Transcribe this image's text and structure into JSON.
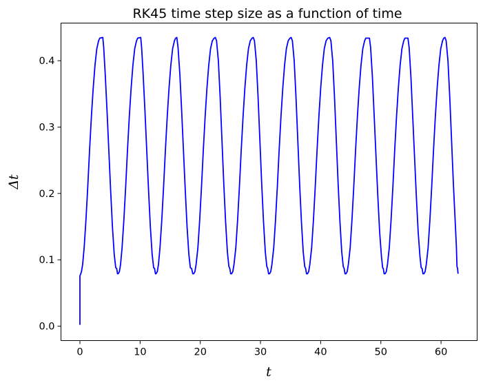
{
  "chart_data": {
    "type": "line",
    "title": "RK45 time step size as a function of time",
    "xlabel": "t",
    "ylabel": "Δt",
    "xlim": [
      -3.15,
      66.0
    ],
    "ylim": [
      -0.0217,
      0.4567
    ],
    "xticks": [
      0,
      10,
      20,
      30,
      40,
      50,
      60
    ],
    "xtick_labels": [
      "0",
      "10",
      "20",
      "30",
      "40",
      "50",
      "60"
    ],
    "yticks": [
      0.0,
      0.1,
      0.2,
      0.3,
      0.4
    ],
    "ytick_labels": [
      "0.0",
      "0.1",
      "0.2",
      "0.3",
      "0.4"
    ],
    "grid": false,
    "legend": "none",
    "colors": {
      "line": "#0000ff",
      "axes": "#000000",
      "background": "#ffffff"
    },
    "series": [
      {
        "color": "#0000ff",
        "period": 6.2832,
        "t_end": 62.83,
        "points": [
          [
            0.0,
            0.002
          ],
          [
            0.0,
            0.076
          ],
          [
            0.1,
            0.078
          ],
          [
            0.25,
            0.082
          ],
          [
            0.45,
            0.093
          ],
          [
            0.7,
            0.118
          ],
          [
            1.0,
            0.16
          ],
          [
            1.3,
            0.21
          ],
          [
            1.6,
            0.265
          ],
          [
            1.9,
            0.315
          ],
          [
            2.2,
            0.358
          ],
          [
            2.5,
            0.393
          ],
          [
            2.8,
            0.418
          ],
          [
            3.1,
            0.43
          ],
          [
            3.3,
            0.434
          ],
          [
            3.8,
            0.435
          ],
          [
            3.95,
            0.42
          ],
          [
            4.2,
            0.38
          ],
          [
            4.5,
            0.325
          ],
          [
            4.8,
            0.265
          ],
          [
            5.1,
            0.205
          ],
          [
            5.4,
            0.15
          ],
          [
            5.7,
            0.108
          ],
          [
            5.95,
            0.088
          ],
          [
            6.1,
            0.087
          ],
          [
            6.25,
            0.079
          ],
          [
            6.35,
            0.079
          ],
          [
            6.55,
            0.082
          ],
          [
            6.75,
            0.093
          ],
          [
            7.0,
            0.118
          ],
          [
            7.3,
            0.16
          ],
          [
            7.6,
            0.21
          ],
          [
            7.9,
            0.265
          ],
          [
            8.2,
            0.315
          ],
          [
            8.5,
            0.358
          ],
          [
            8.8,
            0.393
          ],
          [
            9.1,
            0.418
          ],
          [
            9.4,
            0.43
          ],
          [
            9.6,
            0.434
          ],
          [
            10.1,
            0.435
          ],
          [
            10.25,
            0.42
          ],
          [
            10.5,
            0.38
          ],
          [
            10.8,
            0.325
          ],
          [
            11.1,
            0.265
          ],
          [
            11.4,
            0.205
          ],
          [
            11.7,
            0.15
          ],
          [
            12.0,
            0.108
          ],
          [
            12.25,
            0.088
          ],
          [
            12.4,
            0.087
          ],
          [
            12.55,
            0.079
          ],
          [
            12.65,
            0.079
          ],
          [
            12.85,
            0.082
          ],
          [
            13.05,
            0.093
          ],
          [
            13.3,
            0.118
          ],
          [
            13.6,
            0.16
          ],
          [
            13.9,
            0.21
          ],
          [
            14.2,
            0.265
          ],
          [
            14.5,
            0.315
          ],
          [
            14.8,
            0.358
          ],
          [
            15.1,
            0.393
          ],
          [
            15.4,
            0.418
          ],
          [
            15.7,
            0.43
          ],
          [
            15.9,
            0.434
          ],
          [
            16.1,
            0.435
          ],
          [
            16.3,
            0.42
          ],
          [
            16.6,
            0.38
          ],
          [
            16.9,
            0.325
          ],
          [
            17.2,
            0.265
          ],
          [
            17.5,
            0.205
          ],
          [
            17.8,
            0.15
          ],
          [
            18.1,
            0.108
          ],
          [
            18.35,
            0.088
          ],
          [
            18.55,
            0.087
          ],
          [
            18.75,
            0.079
          ],
          [
            18.9,
            0.079
          ],
          [
            19.1,
            0.082
          ],
          [
            19.3,
            0.093
          ],
          [
            19.6,
            0.118
          ],
          [
            19.9,
            0.16
          ],
          [
            20.2,
            0.21
          ],
          [
            20.5,
            0.265
          ],
          [
            20.8,
            0.315
          ],
          [
            21.1,
            0.358
          ],
          [
            21.4,
            0.393
          ],
          [
            21.7,
            0.418
          ],
          [
            22.0,
            0.43
          ],
          [
            22.3,
            0.434
          ],
          [
            22.5,
            0.435
          ],
          [
            22.7,
            0.43
          ],
          [
            23.0,
            0.4
          ],
          [
            23.3,
            0.345
          ],
          [
            23.6,
            0.28
          ],
          [
            23.9,
            0.215
          ],
          [
            24.2,
            0.158
          ],
          [
            24.5,
            0.112
          ],
          [
            24.75,
            0.09
          ],
          [
            24.9,
            0.087
          ],
          [
            25.05,
            0.079
          ],
          [
            25.2,
            0.079
          ],
          [
            25.4,
            0.082
          ],
          [
            25.6,
            0.093
          ],
          [
            25.9,
            0.118
          ],
          [
            26.2,
            0.16
          ],
          [
            26.5,
            0.21
          ],
          [
            26.8,
            0.265
          ],
          [
            27.1,
            0.315
          ],
          [
            27.4,
            0.358
          ],
          [
            27.7,
            0.393
          ],
          [
            28.0,
            0.418
          ],
          [
            28.3,
            0.43
          ],
          [
            28.6,
            0.434
          ],
          [
            28.8,
            0.435
          ],
          [
            29.0,
            0.43
          ],
          [
            29.3,
            0.4
          ],
          [
            29.6,
            0.345
          ],
          [
            29.9,
            0.28
          ],
          [
            30.2,
            0.215
          ],
          [
            30.5,
            0.158
          ],
          [
            30.8,
            0.112
          ],
          [
            31.05,
            0.09
          ],
          [
            31.2,
            0.087
          ],
          [
            31.35,
            0.079
          ],
          [
            31.5,
            0.079
          ],
          [
            31.7,
            0.082
          ],
          [
            31.9,
            0.093
          ],
          [
            32.2,
            0.118
          ],
          [
            32.5,
            0.16
          ],
          [
            32.8,
            0.21
          ],
          [
            33.1,
            0.265
          ],
          [
            33.4,
            0.315
          ],
          [
            33.7,
            0.358
          ],
          [
            34.0,
            0.393
          ],
          [
            34.3,
            0.418
          ],
          [
            34.6,
            0.43
          ],
          [
            34.9,
            0.434
          ],
          [
            35.1,
            0.435
          ],
          [
            35.3,
            0.43
          ],
          [
            35.6,
            0.4
          ],
          [
            35.9,
            0.345
          ],
          [
            36.2,
            0.28
          ],
          [
            36.5,
            0.215
          ],
          [
            36.8,
            0.158
          ],
          [
            37.1,
            0.112
          ],
          [
            37.35,
            0.09
          ],
          [
            37.5,
            0.087
          ],
          [
            37.65,
            0.079
          ],
          [
            37.8,
            0.079
          ],
          [
            38.0,
            0.082
          ],
          [
            38.2,
            0.093
          ],
          [
            38.5,
            0.118
          ],
          [
            38.8,
            0.16
          ],
          [
            39.1,
            0.21
          ],
          [
            39.4,
            0.265
          ],
          [
            39.7,
            0.315
          ],
          [
            40.0,
            0.358
          ],
          [
            40.3,
            0.393
          ],
          [
            40.6,
            0.418
          ],
          [
            40.9,
            0.43
          ],
          [
            41.2,
            0.434
          ],
          [
            41.5,
            0.435
          ],
          [
            41.7,
            0.43
          ],
          [
            42.0,
            0.4
          ],
          [
            42.3,
            0.345
          ],
          [
            42.6,
            0.28
          ],
          [
            42.9,
            0.215
          ],
          [
            43.2,
            0.158
          ],
          [
            43.5,
            0.112
          ],
          [
            43.75,
            0.09
          ],
          [
            43.9,
            0.087
          ],
          [
            44.05,
            0.079
          ],
          [
            44.2,
            0.079
          ],
          [
            44.4,
            0.082
          ],
          [
            44.6,
            0.093
          ],
          [
            44.9,
            0.118
          ],
          [
            45.2,
            0.16
          ],
          [
            45.5,
            0.21
          ],
          [
            45.8,
            0.265
          ],
          [
            46.1,
            0.315
          ],
          [
            46.4,
            0.358
          ],
          [
            46.7,
            0.393
          ],
          [
            47.0,
            0.418
          ],
          [
            47.3,
            0.43
          ],
          [
            47.5,
            0.434
          ],
          [
            48.1,
            0.434
          ],
          [
            48.3,
            0.42
          ],
          [
            48.6,
            0.375
          ],
          [
            48.9,
            0.315
          ],
          [
            49.2,
            0.255
          ],
          [
            49.5,
            0.195
          ],
          [
            49.8,
            0.142
          ],
          [
            50.1,
            0.105
          ],
          [
            50.3,
            0.088
          ],
          [
            50.4,
            0.087
          ],
          [
            50.55,
            0.079
          ],
          [
            50.7,
            0.079
          ],
          [
            50.9,
            0.082
          ],
          [
            51.1,
            0.093
          ],
          [
            51.4,
            0.118
          ],
          [
            51.7,
            0.16
          ],
          [
            52.0,
            0.21
          ],
          [
            52.3,
            0.265
          ],
          [
            52.6,
            0.315
          ],
          [
            52.9,
            0.358
          ],
          [
            53.2,
            0.393
          ],
          [
            53.5,
            0.418
          ],
          [
            53.8,
            0.43
          ],
          [
            54.0,
            0.434
          ],
          [
            54.5,
            0.434
          ],
          [
            54.7,
            0.42
          ],
          [
            55.0,
            0.375
          ],
          [
            55.3,
            0.315
          ],
          [
            55.6,
            0.255
          ],
          [
            55.9,
            0.195
          ],
          [
            56.2,
            0.142
          ],
          [
            56.5,
            0.105
          ],
          [
            56.7,
            0.088
          ],
          [
            56.85,
            0.087
          ],
          [
            57.0,
            0.079
          ],
          [
            57.15,
            0.079
          ],
          [
            57.35,
            0.082
          ],
          [
            57.55,
            0.093
          ],
          [
            57.85,
            0.118
          ],
          [
            58.15,
            0.16
          ],
          [
            58.45,
            0.21
          ],
          [
            58.75,
            0.265
          ],
          [
            59.05,
            0.315
          ],
          [
            59.35,
            0.358
          ],
          [
            59.65,
            0.393
          ],
          [
            59.95,
            0.418
          ],
          [
            60.25,
            0.43
          ],
          [
            60.45,
            0.434
          ],
          [
            60.65,
            0.435
          ],
          [
            60.85,
            0.43
          ],
          [
            61.15,
            0.4
          ],
          [
            61.45,
            0.345
          ],
          [
            61.75,
            0.28
          ],
          [
            62.05,
            0.215
          ],
          [
            62.35,
            0.158
          ],
          [
            62.55,
            0.12
          ],
          [
            62.65,
            0.09
          ],
          [
            62.75,
            0.087
          ],
          [
            62.83,
            0.079
          ]
        ]
      }
    ]
  }
}
